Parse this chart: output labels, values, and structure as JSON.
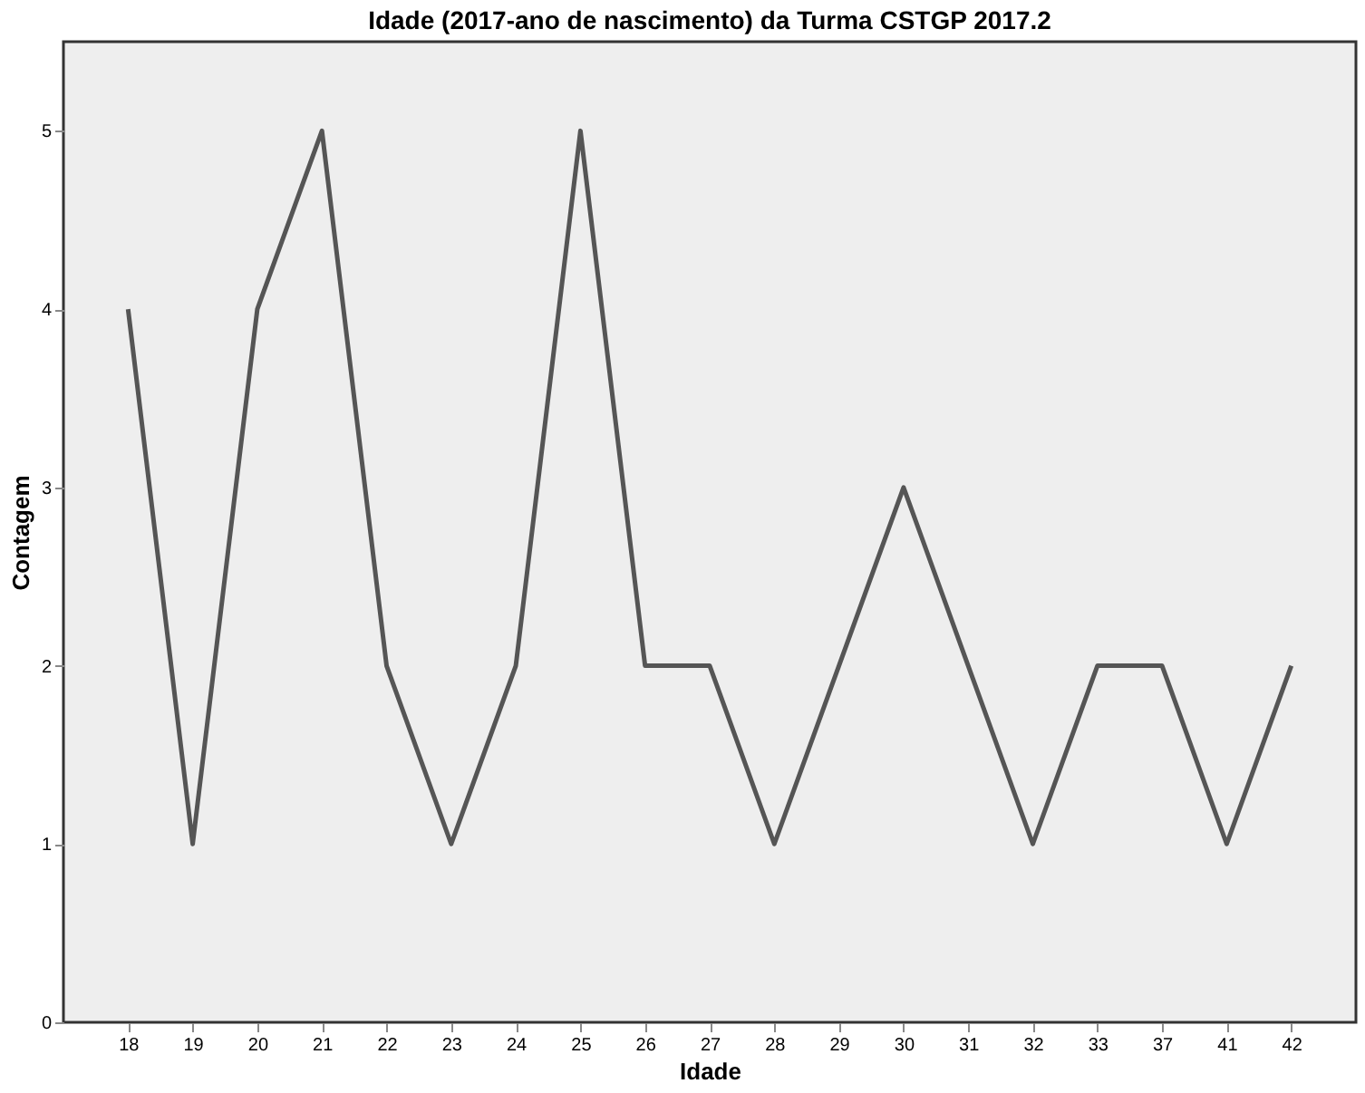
{
  "chart_data": {
    "type": "line",
    "title": "Idade (2017-ano de nascimento) da Turma CSTGP 2017.2",
    "xlabel": "Idade",
    "ylabel": "Contagem",
    "categories": [
      "18",
      "19",
      "20",
      "21",
      "22",
      "23",
      "24",
      "25",
      "26",
      "27",
      "28",
      "29",
      "30",
      "31",
      "32",
      "33",
      "37",
      "41",
      "42"
    ],
    "series": [
      {
        "color": "#555555",
        "values": [
          4,
          1,
          4,
          5,
          2,
          1,
          2,
          5,
          2,
          2,
          1,
          2,
          3,
          2,
          1,
          2,
          2,
          1,
          2
        ]
      }
    ],
    "ylim": [
      0,
      5.5
    ],
    "yticks": [
      0,
      1,
      2,
      3,
      4,
      5
    ],
    "grid": false,
    "marker": "none",
    "line_style": "solid"
  }
}
